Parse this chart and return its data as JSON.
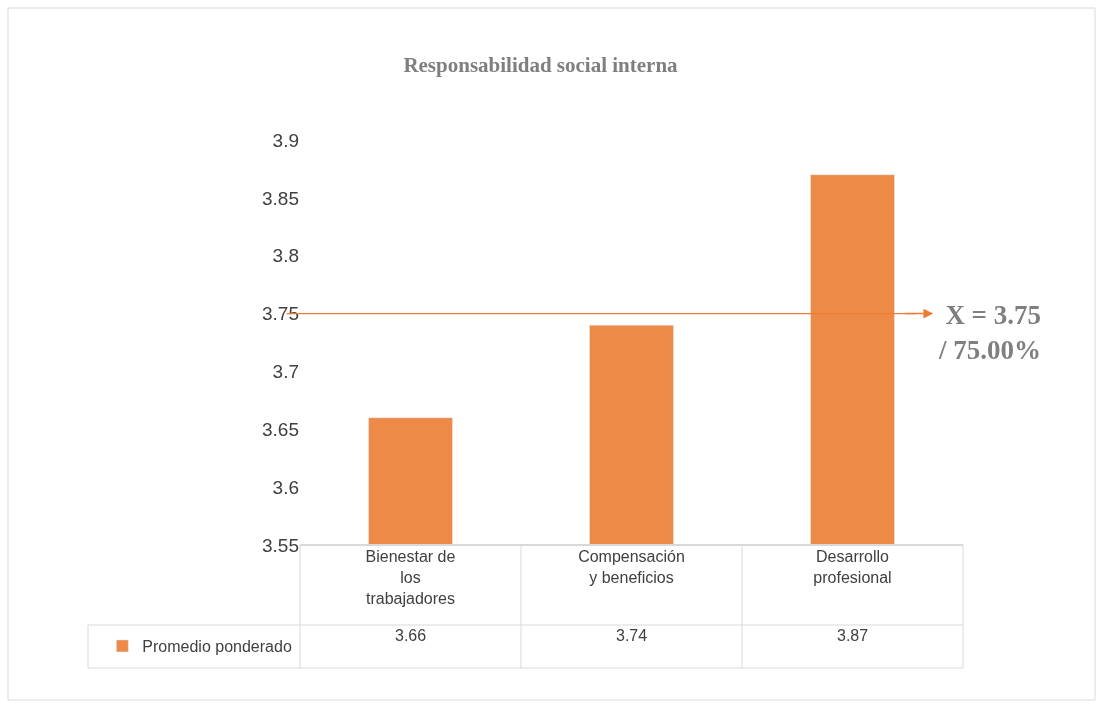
{
  "chart_data": {
    "type": "bar",
    "title": "Responsabilidad social interna",
    "categories": [
      "Bienestar de los trabajadores",
      "Compensación y beneficios",
      "Desarrollo profesional"
    ],
    "series": [
      {
        "name": "Promedio ponderado",
        "color": "#ed8a47",
        "values": [
          3.66,
          3.74,
          3.87
        ]
      }
    ],
    "ylim": [
      3.55,
      3.9
    ],
    "yticks": [
      3.55,
      3.6,
      3.65,
      3.7,
      3.75,
      3.8,
      3.85,
      3.9
    ],
    "legend": "bottom left",
    "data_labels": true,
    "ref_lines": [
      {
        "axis": "y",
        "value": 3.75,
        "label": "X = 3.75 / 75.00%",
        "color": "#ed7d31"
      }
    ]
  }
}
